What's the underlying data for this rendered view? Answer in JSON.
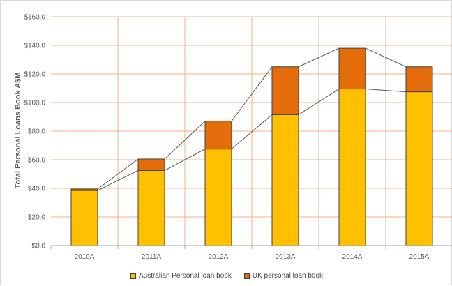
{
  "chart_data": {
    "type": "bar",
    "stacked": true,
    "categories": [
      "2010A",
      "2011A",
      "2012A",
      "2013A",
      "2014A",
      "2015A"
    ],
    "series": [
      {
        "name": "Australian Personal loan book",
        "color": "#FFC000",
        "values": [
          38.5,
          52.5,
          67.5,
          91.5,
          109.5,
          107.5
        ]
      },
      {
        "name": "UK personal loan book",
        "color": "#E46C0A",
        "values": [
          1.0,
          8.0,
          19.5,
          33.5,
          28.5,
          17.5
        ]
      }
    ],
    "connector_lines": true,
    "ylabel": "Total Personal Loans Book A$M",
    "xlabel": "",
    "ylim": [
      0,
      160
    ],
    "yticks": [
      0,
      20,
      40,
      60,
      80,
      100,
      120,
      140,
      160
    ],
    "ytick_labels": [
      "$0.0",
      "$20.0",
      "$40.0",
      "$60.0",
      "$80.0",
      "$100.0",
      "$120.0",
      "$140.0",
      "$160.0"
    ],
    "grid": "horizontal and vertical",
    "grid_color": "#F4B183",
    "legend_position": "bottom"
  }
}
